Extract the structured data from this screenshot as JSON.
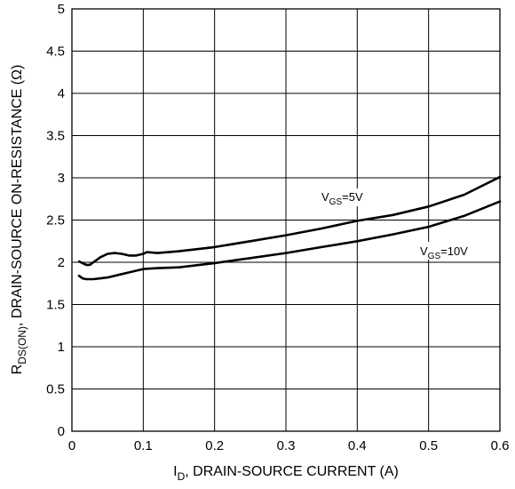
{
  "chart_data": {
    "type": "line",
    "xlim": [
      0,
      0.6
    ],
    "ylim": [
      0,
      5
    ],
    "grid": true,
    "x_ticks": [
      "0",
      "0.1",
      "0.2",
      "0.3",
      "0.4",
      "0.5",
      "0.6"
    ],
    "y_ticks": [
      "0",
      "0.5",
      "1",
      "1.5",
      "2",
      "2.5",
      "3",
      "3.5",
      "4",
      "4.5",
      "5"
    ],
    "xlabel": {
      "main": "I",
      "sub": "D",
      "rest": ", DRAIN-SOURCE CURRENT (A)"
    },
    "ylabel": {
      "main": "R",
      "sub": "DS(ON)",
      "rest": ", DRAIN-SOURCE ON-RESISTANCE (Ω)"
    },
    "series": [
      {
        "label_main": "V",
        "label_sub": "GS",
        "label_rest": "=5V",
        "x": [
          0.01,
          0.015,
          0.02,
          0.025,
          0.03,
          0.04,
          0.05,
          0.06,
          0.07,
          0.08,
          0.09,
          0.1,
          0.105,
          0.12,
          0.15,
          0.2,
          0.25,
          0.3,
          0.35,
          0.4,
          0.45,
          0.5,
          0.55,
          0.6
        ],
        "values": [
          2.01,
          1.99,
          1.97,
          1.97,
          2.0,
          2.06,
          2.1,
          2.11,
          2.1,
          2.08,
          2.08,
          2.1,
          2.12,
          2.11,
          2.13,
          2.18,
          2.25,
          2.32,
          2.4,
          2.49,
          2.56,
          2.66,
          2.8,
          3.01
        ]
      },
      {
        "label_main": "V",
        "label_sub": "GS",
        "label_rest": "=10V",
        "x": [
          0.01,
          0.015,
          0.02,
          0.03,
          0.04,
          0.05,
          0.06,
          0.08,
          0.1,
          0.12,
          0.15,
          0.2,
          0.25,
          0.3,
          0.35,
          0.4,
          0.45,
          0.5,
          0.55,
          0.6
        ],
        "values": [
          1.84,
          1.81,
          1.8,
          1.8,
          1.81,
          1.82,
          1.84,
          1.88,
          1.92,
          1.93,
          1.94,
          1.99,
          2.05,
          2.11,
          2.18,
          2.25,
          2.33,
          2.42,
          2.55,
          2.72
        ]
      }
    ]
  }
}
